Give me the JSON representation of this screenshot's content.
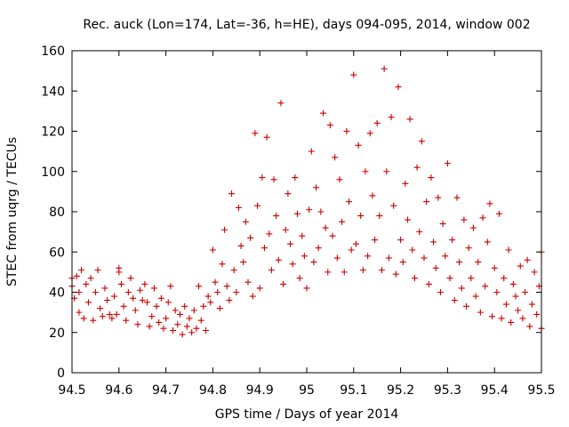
{
  "chart_data": {
    "type": "scatter",
    "title": "Rec. auck (Lon=174, Lat=-36, h=HE), days 094-095, 2014, window 002",
    "xlabel": "GPS time / Days of year 2014",
    "ylabel": "STEC from uqrg / TECUs",
    "xlim": [
      94.5,
      95.5
    ],
    "ylim": [
      0,
      160
    ],
    "x_ticks": [
      "94.5",
      "94.6",
      "94.7",
      "94.8",
      "94.9",
      "95",
      "95.1",
      "95.2",
      "95.3",
      "95.4",
      "95.5"
    ],
    "y_ticks": [
      "0",
      "20",
      "40",
      "60",
      "80",
      "100",
      "120",
      "140",
      "160"
    ],
    "grid": false,
    "legend": "none",
    "marker": "plus",
    "color": "#cc0000",
    "series": [
      {
        "name": "STEC",
        "points": [
          [
            94.5,
            47
          ],
          [
            94.5,
            43
          ],
          [
            94.505,
            37
          ],
          [
            94.51,
            48
          ],
          [
            94.515,
            30
          ],
          [
            94.515,
            40
          ],
          [
            94.52,
            51
          ],
          [
            94.525,
            27
          ],
          [
            94.53,
            44
          ],
          [
            94.535,
            35
          ],
          [
            94.54,
            47
          ],
          [
            94.545,
            26
          ],
          [
            94.55,
            40
          ],
          [
            94.555,
            51
          ],
          [
            94.56,
            32
          ],
          [
            94.565,
            28
          ],
          [
            94.57,
            42
          ],
          [
            94.575,
            36
          ],
          [
            94.58,
            29
          ],
          [
            94.585,
            27
          ],
          [
            94.59,
            38
          ],
          [
            94.595,
            29
          ],
          [
            94.6,
            52
          ],
          [
            94.6,
            50
          ],
          [
            94.605,
            44
          ],
          [
            94.61,
            33
          ],
          [
            94.615,
            26
          ],
          [
            94.62,
            40
          ],
          [
            94.625,
            47
          ],
          [
            94.63,
            37
          ],
          [
            94.635,
            31
          ],
          [
            94.64,
            24
          ],
          [
            94.645,
            41
          ],
          [
            94.65,
            36
          ],
          [
            94.655,
            44
          ],
          [
            94.66,
            35
          ],
          [
            94.665,
            23
          ],
          [
            94.67,
            28
          ],
          [
            94.675,
            42
          ],
          [
            94.68,
            33
          ],
          [
            94.685,
            25
          ],
          [
            94.69,
            37
          ],
          [
            94.695,
            22
          ],
          [
            94.7,
            27
          ],
          [
            94.705,
            35
          ],
          [
            94.71,
            43
          ],
          [
            94.715,
            21
          ],
          [
            94.72,
            31
          ],
          [
            94.725,
            24
          ],
          [
            94.73,
            29
          ],
          [
            94.735,
            19
          ],
          [
            94.74,
            33
          ],
          [
            94.745,
            23
          ],
          [
            94.75,
            27
          ],
          [
            94.755,
            20
          ],
          [
            94.76,
            31
          ],
          [
            94.765,
            22
          ],
          [
            94.77,
            43
          ],
          [
            94.775,
            26
          ],
          [
            94.78,
            33
          ],
          [
            94.785,
            21
          ],
          [
            94.79,
            38
          ],
          [
            94.795,
            35
          ],
          [
            94.8,
            61
          ],
          [
            94.805,
            45
          ],
          [
            94.81,
            40
          ],
          [
            94.815,
            32
          ],
          [
            94.82,
            54
          ],
          [
            94.825,
            71
          ],
          [
            94.83,
            43
          ],
          [
            94.835,
            36
          ],
          [
            94.84,
            89
          ],
          [
            94.845,
            51
          ],
          [
            94.85,
            40
          ],
          [
            94.855,
            82
          ],
          [
            94.86,
            63
          ],
          [
            94.865,
            55
          ],
          [
            94.87,
            75
          ],
          [
            94.875,
            45
          ],
          [
            94.88,
            67
          ],
          [
            94.885,
            38
          ],
          [
            94.89,
            119
          ],
          [
            94.895,
            83
          ],
          [
            94.9,
            42
          ],
          [
            94.905,
            97
          ],
          [
            94.91,
            62
          ],
          [
            94.915,
            117
          ],
          [
            94.92,
            69
          ],
          [
            94.925,
            51
          ],
          [
            94.93,
            96
          ],
          [
            94.935,
            78
          ],
          [
            94.94,
            56
          ],
          [
            94.945,
            134
          ],
          [
            94.95,
            44
          ],
          [
            94.955,
            71
          ],
          [
            94.96,
            89
          ],
          [
            94.965,
            64
          ],
          [
            94.97,
            54
          ],
          [
            94.975,
            97
          ],
          [
            94.98,
            79
          ],
          [
            94.985,
            47
          ],
          [
            94.99,
            68
          ],
          [
            94.995,
            58
          ],
          [
            95.0,
            42
          ],
          [
            95.005,
            81
          ],
          [
            95.01,
            110
          ],
          [
            95.015,
            55
          ],
          [
            95.02,
            92
          ],
          [
            95.025,
            62
          ],
          [
            95.03,
            80
          ],
          [
            95.035,
            129
          ],
          [
            95.04,
            72
          ],
          [
            95.045,
            50
          ],
          [
            95.05,
            123
          ],
          [
            95.055,
            68
          ],
          [
            95.06,
            107
          ],
          [
            95.065,
            57
          ],
          [
            95.07,
            96
          ],
          [
            95.075,
            75
          ],
          [
            95.08,
            50
          ],
          [
            95.085,
            120
          ],
          [
            95.09,
            85
          ],
          [
            95.095,
            61
          ],
          [
            95.1,
            148
          ],
          [
            95.105,
            64
          ],
          [
            95.11,
            113
          ],
          [
            95.115,
            78
          ],
          [
            95.12,
            51
          ],
          [
            95.125,
            100
          ],
          [
            95.13,
            58
          ],
          [
            95.135,
            119
          ],
          [
            95.14,
            88
          ],
          [
            95.145,
            66
          ],
          [
            95.15,
            124
          ],
          [
            95.155,
            78
          ],
          [
            95.16,
            51
          ],
          [
            95.165,
            151
          ],
          [
            95.17,
            100
          ],
          [
            95.175,
            57
          ],
          [
            95.18,
            127
          ],
          [
            95.185,
            83
          ],
          [
            95.19,
            49
          ],
          [
            95.195,
            142
          ],
          [
            95.2,
            66
          ],
          [
            95.205,
            55
          ],
          [
            95.21,
            94
          ],
          [
            95.215,
            76
          ],
          [
            95.22,
            126
          ],
          [
            95.225,
            61
          ],
          [
            95.23,
            47
          ],
          [
            95.235,
            102
          ],
          [
            95.24,
            70
          ],
          [
            95.245,
            115
          ],
          [
            95.25,
            57
          ],
          [
            95.255,
            85
          ],
          [
            95.26,
            44
          ],
          [
            95.265,
            97
          ],
          [
            95.27,
            65
          ],
          [
            95.275,
            52
          ],
          [
            95.28,
            87
          ],
          [
            95.285,
            40
          ],
          [
            95.29,
            74
          ],
          [
            95.295,
            58
          ],
          [
            95.3,
            104
          ],
          [
            95.305,
            47
          ],
          [
            95.31,
            66
          ],
          [
            95.315,
            36
          ],
          [
            95.32,
            87
          ],
          [
            95.325,
            55
          ],
          [
            95.33,
            42
          ],
          [
            95.335,
            76
          ],
          [
            95.34,
            33
          ],
          [
            95.345,
            62
          ],
          [
            95.35,
            47
          ],
          [
            95.355,
            72
          ],
          [
            95.36,
            38
          ],
          [
            95.365,
            55
          ],
          [
            95.37,
            30
          ],
          [
            95.375,
            77
          ],
          [
            95.38,
            43
          ],
          [
            95.385,
            65
          ],
          [
            95.39,
            84
          ],
          [
            95.395,
            28
          ],
          [
            95.4,
            52
          ],
          [
            95.405,
            40
          ],
          [
            95.41,
            79
          ],
          [
            95.415,
            27
          ],
          [
            95.42,
            47
          ],
          [
            95.425,
            34
          ],
          [
            95.43,
            61
          ],
          [
            95.435,
            25
          ],
          [
            95.44,
            44
          ],
          [
            95.445,
            38
          ],
          [
            95.45,
            31
          ],
          [
            95.455,
            53
          ],
          [
            95.46,
            27
          ],
          [
            95.465,
            40
          ],
          [
            95.47,
            56
          ],
          [
            95.475,
            23
          ],
          [
            95.48,
            34
          ],
          [
            95.485,
            50
          ],
          [
            95.49,
            29
          ],
          [
            95.495,
            43
          ],
          [
            95.5,
            60
          ],
          [
            95.5,
            22
          ]
        ]
      }
    ]
  }
}
